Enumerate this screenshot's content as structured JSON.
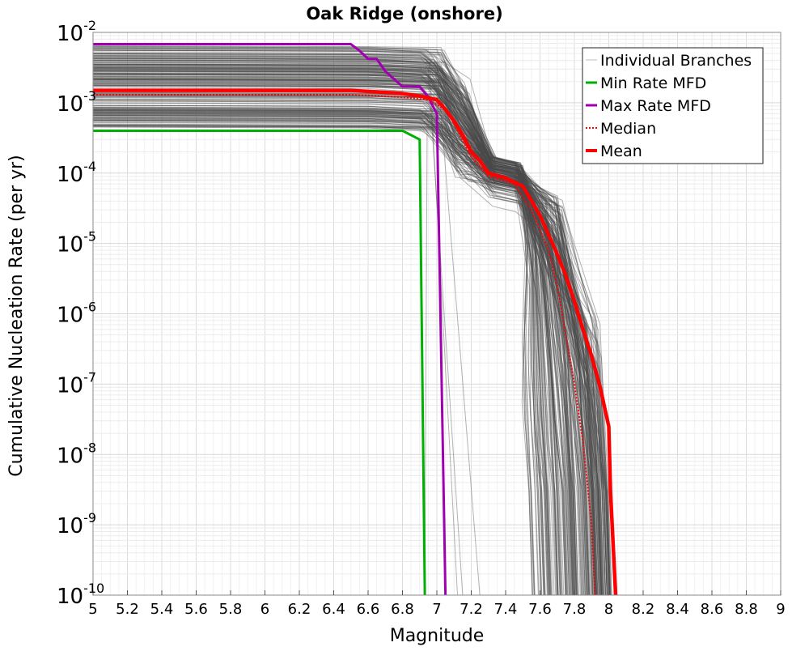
{
  "chart_data": {
    "type": "line",
    "title": "Oak Ridge (onshore)",
    "xlabel": "Magnitude",
    "ylabel": "Cumulative Nucleation Rate (per yr)",
    "xlim": [
      5,
      9
    ],
    "ylim": [
      1e-10,
      0.01
    ],
    "yscale": "log",
    "grid": true,
    "legend_position": "top-right",
    "x_ticks": [
      5,
      5.2,
      5.4,
      5.6,
      5.8,
      6,
      6.2,
      6.4,
      6.6,
      6.8,
      7,
      7.2,
      7.4,
      7.6,
      7.8,
      8,
      8.2,
      8.4,
      8.6,
      8.8,
      9
    ],
    "x_tick_labels": [
      "5",
      "5.2",
      "5.4",
      "5.6",
      "5.8",
      "6",
      "6.2",
      "6.4",
      "6.6",
      "6.8",
      "7",
      "7.2",
      "7.4",
      "7.6",
      "7.8",
      "8",
      "8.2",
      "8.4",
      "8.6",
      "8.8",
      "9"
    ],
    "y_ticks": [
      {
        "value": 0.01,
        "base": "10",
        "exp": "-2"
      },
      {
        "value": 0.001,
        "base": "10",
        "exp": "-3"
      },
      {
        "value": 0.0001,
        "base": "10",
        "exp": "-4"
      },
      {
        "value": 1e-05,
        "base": "10",
        "exp": "-5"
      },
      {
        "value": 1e-06,
        "base": "10",
        "exp": "-6"
      },
      {
        "value": 1e-07,
        "base": "10",
        "exp": "-7"
      },
      {
        "value": 1e-08,
        "base": "10",
        "exp": "-8"
      },
      {
        "value": 1e-09,
        "base": "10",
        "exp": "-9"
      },
      {
        "value": 1e-10,
        "base": "10",
        "exp": "-10"
      }
    ],
    "branch_band": {
      "upper_rate": 0.0066,
      "lower_rate": 0.00045,
      "taper_start_magnitude": 6.6,
      "earliest_cutoff_magnitude": 6.9,
      "latest_cutoff_magnitude": 8.02,
      "color": "#4a4a4a"
    },
    "series": [
      {
        "name": "Individual Branches",
        "color": "#bdbdbd",
        "style": "thin",
        "points": []
      },
      {
        "name": "Min Rate MFD",
        "color": "#00b000",
        "style": "solid",
        "points": [
          [
            5,
            0.0004
          ],
          [
            6.8,
            0.0004
          ],
          [
            6.9,
            0.0003
          ],
          [
            6.93,
            1e-10
          ]
        ]
      },
      {
        "name": "Max Rate MFD",
        "color": "#a000b0",
        "style": "solid",
        "points": [
          [
            5,
            0.0068
          ],
          [
            6.5,
            0.0068
          ],
          [
            6.55,
            0.0055
          ],
          [
            6.6,
            0.0042
          ],
          [
            6.65,
            0.0042
          ],
          [
            6.7,
            0.0028
          ],
          [
            6.8,
            0.0017
          ],
          [
            6.9,
            0.0017
          ],
          [
            6.95,
            0.0012
          ],
          [
            7.0,
            0.0007
          ],
          [
            7.05,
            1e-10
          ]
        ]
      },
      {
        "name": "Median",
        "color": "#ff0000",
        "style": "dotted",
        "points": [
          [
            5,
            0.0013
          ],
          [
            6.5,
            0.0013
          ],
          [
            6.8,
            0.0012
          ],
          [
            6.95,
            0.0011
          ],
          [
            7.05,
            0.0008
          ],
          [
            7.1,
            0.0005
          ],
          [
            7.2,
            0.00017
          ],
          [
            7.3,
            9e-05
          ],
          [
            7.45,
            7e-05
          ],
          [
            7.55,
            3e-05
          ],
          [
            7.65,
            8e-06
          ],
          [
            7.7,
            2.5e-06
          ],
          [
            7.75,
            5e-07
          ],
          [
            7.8,
            1e-07
          ],
          [
            7.85,
            1.5e-08
          ],
          [
            7.9,
            1e-09
          ],
          [
            7.92,
            1e-10
          ]
        ]
      },
      {
        "name": "Mean",
        "color": "#ff0000",
        "style": "thick",
        "points": [
          [
            5,
            0.0015
          ],
          [
            6.5,
            0.0015
          ],
          [
            6.7,
            0.0014
          ],
          [
            6.8,
            0.00135
          ],
          [
            6.9,
            0.00125
          ],
          [
            7.0,
            0.0011
          ],
          [
            7.05,
            0.0008
          ],
          [
            7.1,
            0.00055
          ],
          [
            7.15,
            0.00035
          ],
          [
            7.2,
            0.0002
          ],
          [
            7.25,
            0.00015
          ],
          [
            7.3,
            0.0001
          ],
          [
            7.4,
            8.5e-05
          ],
          [
            7.5,
            6.5e-05
          ],
          [
            7.6,
            2.5e-05
          ],
          [
            7.7,
            7e-06
          ],
          [
            7.75,
            3.5e-06
          ],
          [
            7.8,
            1.5e-06
          ],
          [
            7.85,
            6e-07
          ],
          [
            7.9,
            2.5e-07
          ],
          [
            7.95,
            9e-08
          ],
          [
            8.0,
            2.5e-08
          ],
          [
            8.01,
            3e-09
          ],
          [
            8.04,
            1e-10
          ]
        ]
      }
    ]
  }
}
